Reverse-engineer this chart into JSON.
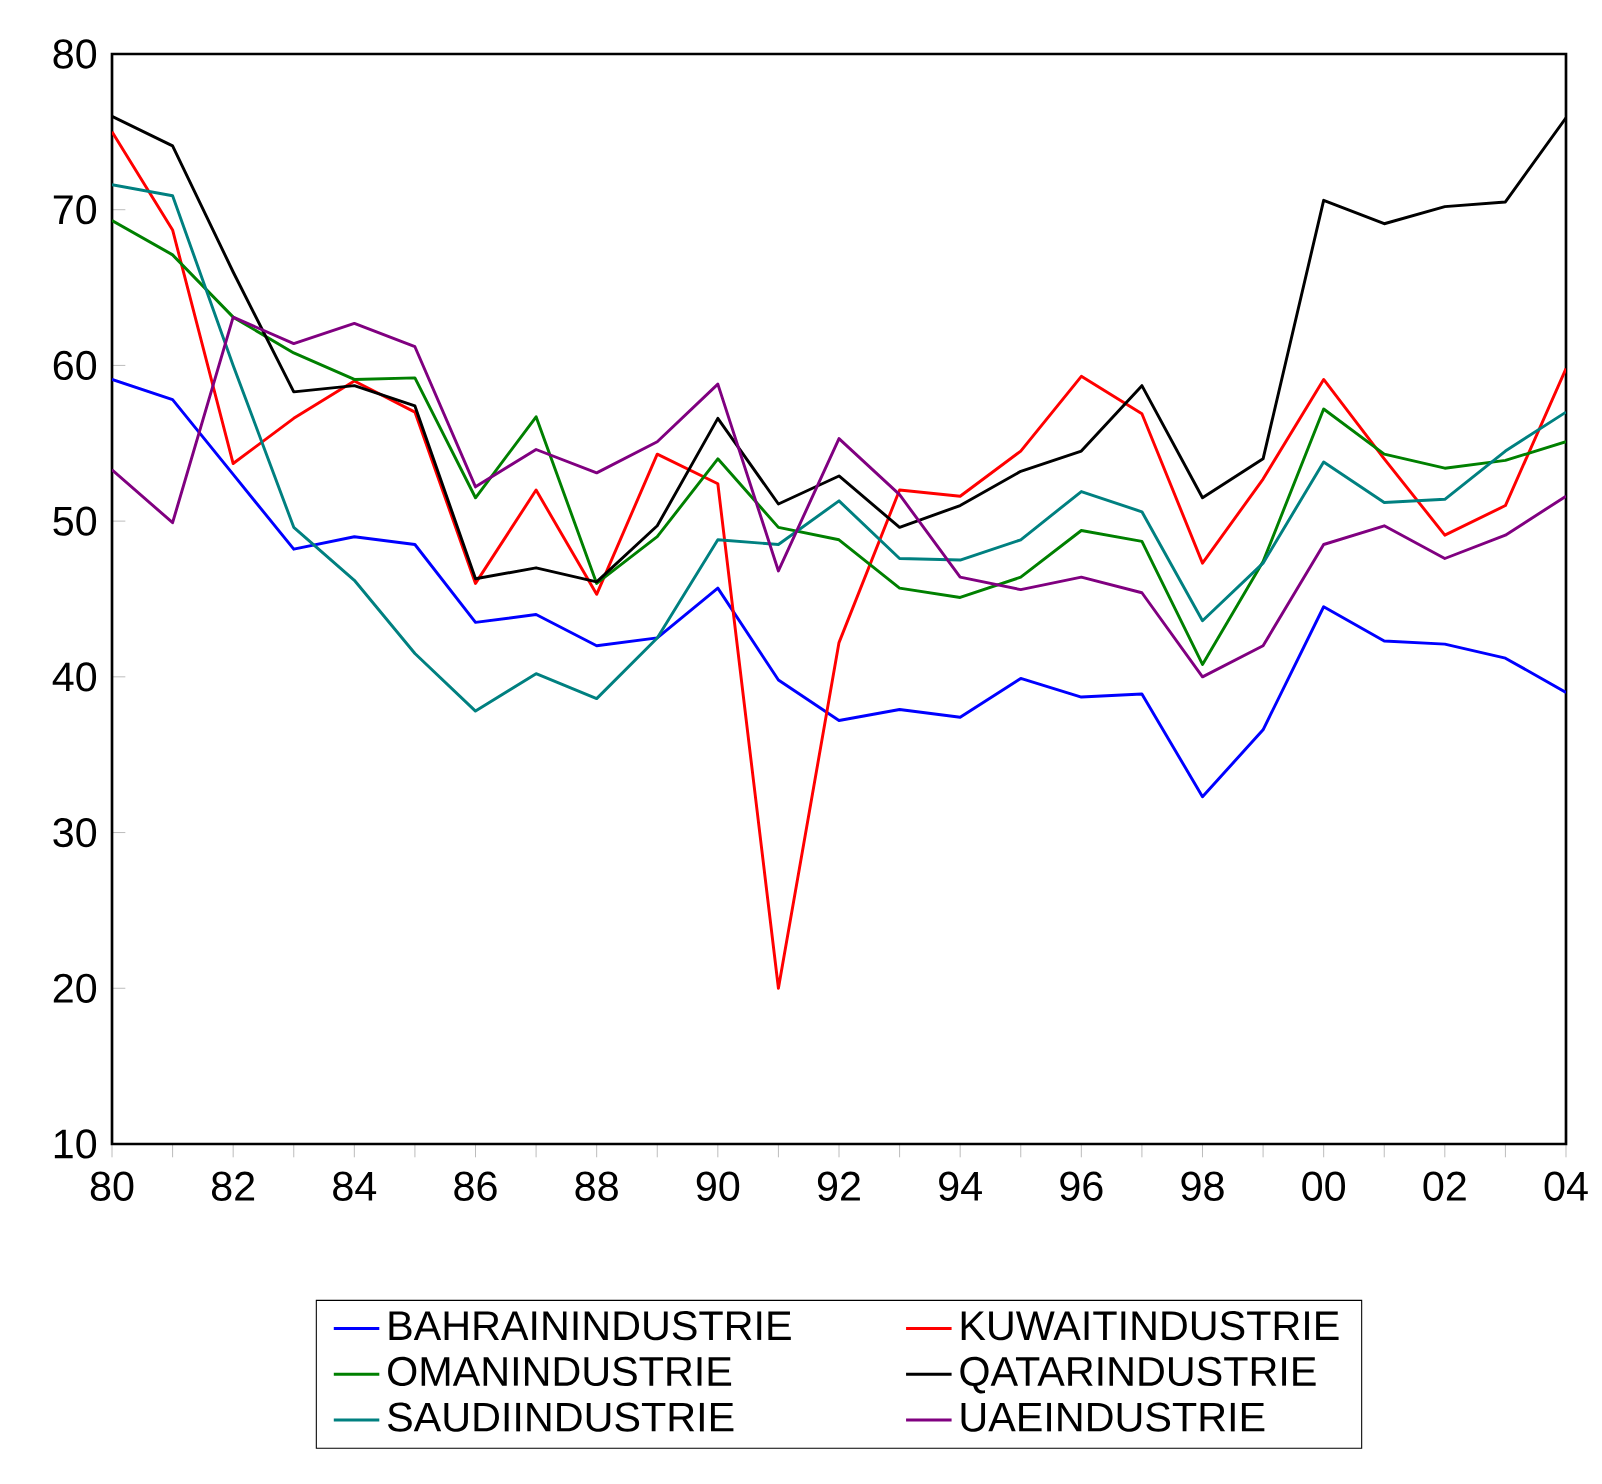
{
  "chart_data": {
    "type": "line",
    "x": [
      1980,
      1981,
      1982,
      1983,
      1984,
      1985,
      1986,
      1987,
      1988,
      1989,
      1990,
      1991,
      1992,
      1993,
      1994,
      1995,
      1996,
      1997,
      1998,
      1999,
      2000,
      2001,
      2002,
      2003,
      2004
    ],
    "series": [
      {
        "name": "BAHRAININDUSTRIE",
        "color": "#0000ff",
        "values": [
          59.1,
          57.8,
          53,
          48.2,
          49,
          48.5,
          43.5,
          44,
          42,
          42.5,
          45.7,
          39.8,
          37.2,
          37.9,
          37.4,
          39.9,
          38.7,
          38.9,
          32.3,
          36.6,
          44.5,
          42.3,
          42.1,
          41.2,
          39
        ]
      },
      {
        "name": "KUWAITINDUSTRIE",
        "color": "#ff0000",
        "values": [
          75,
          68.7,
          53.7,
          56.6,
          59,
          57,
          46,
          52,
          45.3,
          54.3,
          52.4,
          20,
          42.2,
          52,
          51.6,
          54.5,
          59.3,
          56.9,
          47.3,
          52.7,
          59.1,
          54,
          49.1,
          51,
          59.8
        ]
      },
      {
        "name": "OMANINDUSTRIE",
        "color": "#008000",
        "values": [
          69.3,
          67.1,
          63.1,
          60.8,
          59.1,
          59.2,
          51.5,
          56.7,
          46,
          49,
          54,
          49.6,
          48.8,
          45.7,
          45.1,
          46.4,
          49.4,
          48.7,
          40.8,
          47.4,
          57.2,
          54.3,
          53.4,
          53.9,
          55.1
        ]
      },
      {
        "name": "QATARINDUSTRIE",
        "color": "#000000",
        "values": [
          76,
          74.1,
          66,
          58.3,
          58.7,
          57.4,
          46.3,
          47,
          46.1,
          49.7,
          56.6,
          51.1,
          52.9,
          49.6,
          51,
          53.2,
          54.5,
          58.7,
          51.5,
          54,
          70.6,
          69.1,
          70.2,
          70.5,
          75.9
        ]
      },
      {
        "name": "SAUDIINDUSTRIE",
        "color": "#008080",
        "values": [
          71.6,
          70.9,
          60,
          49.6,
          46.2,
          41.5,
          37.8,
          40.2,
          38.6,
          42.5,
          48.8,
          48.5,
          51.3,
          47.6,
          47.5,
          48.8,
          51.9,
          50.6,
          43.6,
          47.3,
          53.8,
          51.2,
          51.4,
          54.5,
          57
        ]
      },
      {
        "name": "UAEINDUSTRIE",
        "color": "#800080",
        "values": [
          53.3,
          49.9,
          63.1,
          61.4,
          62.7,
          61.2,
          52.2,
          54.6,
          53.1,
          55.1,
          58.8,
          46.8,
          55.3,
          51.7,
          46.4,
          45.6,
          46.4,
          45.4,
          40,
          42,
          48.5,
          49.7,
          47.6,
          49.1,
          51.6
        ]
      }
    ],
    "xlim": [
      1980,
      2004
    ],
    "xticks": [
      {
        "value": 1980,
        "label": "80"
      },
      {
        "value": 1981,
        "label": null
      },
      {
        "value": 1982,
        "label": "82"
      },
      {
        "value": 1983,
        "label": null
      },
      {
        "value": 1984,
        "label": "84"
      },
      {
        "value": 1985,
        "label": null
      },
      {
        "value": 1986,
        "label": "86"
      },
      {
        "value": 1987,
        "label": null
      },
      {
        "value": 1988,
        "label": "88"
      },
      {
        "value": 1989,
        "label": null
      },
      {
        "value": 1990,
        "label": "90"
      },
      {
        "value": 1991,
        "label": null
      },
      {
        "value": 1992,
        "label": "92"
      },
      {
        "value": 1993,
        "label": null
      },
      {
        "value": 1994,
        "label": "94"
      },
      {
        "value": 1995,
        "label": null
      },
      {
        "value": 1996,
        "label": "96"
      },
      {
        "value": 1997,
        "label": null
      },
      {
        "value": 1998,
        "label": "98"
      },
      {
        "value": 1999,
        "label": null
      },
      {
        "value": 2000,
        "label": "00"
      },
      {
        "value": 2001,
        "label": null
      },
      {
        "value": 2002,
        "label": "02"
      },
      {
        "value": 2003,
        "label": null
      },
      {
        "value": 2004,
        "label": "04"
      }
    ],
    "ylim": [
      10,
      80
    ],
    "yticks": [
      10,
      20,
      30,
      40,
      50,
      60,
      70,
      80
    ],
    "legend": "bottom"
  }
}
